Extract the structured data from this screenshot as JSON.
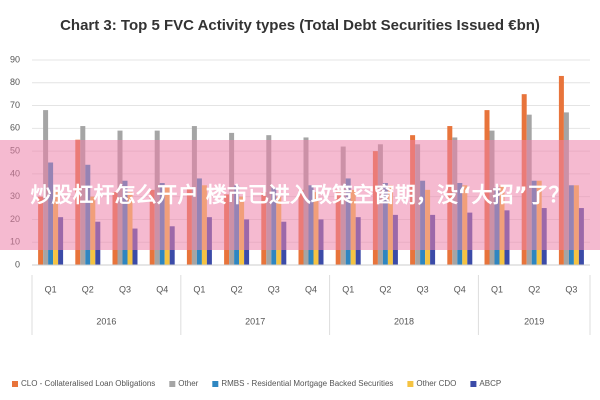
{
  "chart_data": {
    "type": "bar",
    "title": "Chart 3: Top 5 FVC Activity types (Total Debt Securities Issued €bn)",
    "categories": [
      "Q1",
      "Q2",
      "Q3",
      "Q4",
      "Q1",
      "Q2",
      "Q3",
      "Q4",
      "Q1",
      "Q2",
      "Q3",
      "Q4",
      "Q1",
      "Q2",
      "Q3"
    ],
    "groups": [
      {
        "label": "2016",
        "count": 4
      },
      {
        "label": "2017",
        "count": 4
      },
      {
        "label": "2018",
        "count": 4
      },
      {
        "label": "2019",
        "count": 3
      }
    ],
    "series": [
      {
        "name": "CLO - Collateralised Loan Obligations",
        "color": "#e8743b",
        "values": [
          30,
          55,
          32,
          33,
          34,
          31,
          32,
          33,
          33,
          50,
          57,
          61,
          68,
          75,
          83
        ]
      },
      {
        "name": "Other",
        "color": "#a5a5a5",
        "values": [
          68,
          61,
          59,
          59,
          61,
          58,
          57,
          56,
          52,
          53,
          53,
          56,
          59,
          66,
          67
        ]
      },
      {
        "name": "RMBS - Residential Mortgage Backed Securities",
        "color": "#2e86c1",
        "values": [
          45,
          44,
          37,
          36,
          38,
          35,
          34,
          35,
          38,
          36,
          37,
          36,
          34,
          37,
          35
        ]
      },
      {
        "name": "Other CDO",
        "color": "#f5c342",
        "values": [
          33,
          30,
          32,
          34,
          35,
          30,
          30,
          32,
          33,
          35,
          33,
          35,
          35,
          37,
          35
        ]
      },
      {
        "name": "ABCP",
        "color": "#3b4ba8",
        "values": [
          21,
          19,
          16,
          17,
          21,
          20,
          19,
          20,
          21,
          22,
          22,
          23,
          24,
          25,
          25
        ]
      }
    ],
    "ylim": [
      0,
      90
    ],
    "yticks": [
      0,
      10,
      20,
      30,
      40,
      50,
      60,
      70,
      80,
      90
    ],
    "grid": true
  },
  "overlay": {
    "text": "炒股杠杆怎么开户 楼市已进入政策空窗期，没“大招”了？"
  }
}
